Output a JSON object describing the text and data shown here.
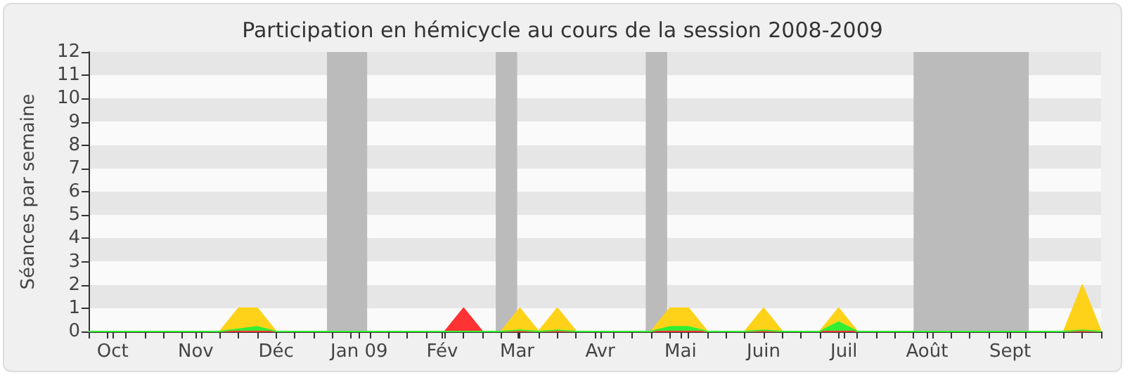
{
  "chart_data": {
    "type": "area",
    "title": "Participation en hémicycle au cours de la session 2008-2009",
    "ylabel": "Séances par semaine",
    "x": [
      "2008-09-22",
      "2008-09-29",
      "2008-10-06",
      "2008-10-13",
      "2008-10-20",
      "2008-10-27",
      "2008-11-03",
      "2008-11-10",
      "2008-11-17",
      "2008-11-24",
      "2008-12-01",
      "2008-12-08",
      "2008-12-15",
      "2008-12-22",
      "2008-12-29",
      "2009-01-05",
      "2009-01-12",
      "2009-01-19",
      "2009-01-26",
      "2009-02-02",
      "2009-02-09",
      "2009-02-16",
      "2009-02-23",
      "2009-03-02",
      "2009-03-09",
      "2009-03-16",
      "2009-03-23",
      "2009-03-30",
      "2009-04-06",
      "2009-04-13",
      "2009-04-20",
      "2009-04-27",
      "2009-05-04",
      "2009-05-11",
      "2009-05-18",
      "2009-05-25",
      "2009-06-01",
      "2009-06-08",
      "2009-06-15",
      "2009-06-22",
      "2009-06-29",
      "2009-07-06",
      "2009-07-13",
      "2009-07-20",
      "2009-07-27",
      "2009-08-03",
      "2009-08-10",
      "2009-08-17",
      "2009-08-24",
      "2009-08-31",
      "2009-09-07",
      "2009-09-14",
      "2009-09-21",
      "2009-09-28",
      "2009-10-05"
    ],
    "series": [
      {
        "color": "#ffd21a",
        "values": [
          0,
          0,
          0,
          0,
          0,
          0,
          0,
          0,
          1,
          1,
          0,
          0,
          0,
          0,
          0,
          0,
          0,
          0,
          0,
          0,
          0,
          0,
          0,
          1,
          0,
          1,
          0,
          0,
          0,
          0,
          0,
          1,
          1,
          0,
          0,
          0,
          1,
          0,
          0,
          0,
          1,
          0,
          0,
          0,
          0,
          0,
          0,
          0,
          0,
          0,
          0,
          0,
          0,
          2,
          0
        ]
      },
      {
        "color": "#ff3333",
        "values": [
          0,
          0,
          0,
          0,
          0,
          0,
          0,
          0,
          0,
          0,
          0,
          0,
          0,
          0,
          0,
          0,
          0,
          0,
          0,
          0,
          1,
          0,
          0,
          0,
          0,
          0,
          0,
          0,
          0,
          0,
          0,
          0,
          0,
          0,
          0,
          0,
          0,
          0,
          0,
          0,
          0,
          0,
          0,
          0,
          0,
          0,
          0,
          0,
          0,
          0,
          0,
          0,
          0,
          0,
          0
        ]
      },
      {
        "color": "#33ee33",
        "values": [
          0,
          0,
          0,
          0,
          0,
          0,
          0,
          0,
          0.1,
          0.2,
          0,
          0,
          0,
          0,
          0,
          0,
          0,
          0,
          0,
          0,
          0,
          0,
          0,
          0.05,
          0,
          0.05,
          0,
          0,
          0,
          0,
          0,
          0.2,
          0.2,
          0,
          0,
          0,
          0.05,
          0,
          0,
          0,
          0.4,
          0,
          0,
          0,
          0,
          0,
          0,
          0,
          0,
          0,
          0,
          0,
          0,
          0.05,
          0
        ]
      }
    ],
    "xlim": [
      "2008-09-22",
      "2009-10-05"
    ],
    "xticks": [
      {
        "value": "2008-10-01",
        "label": "Oct"
      },
      {
        "value": "2008-11-01",
        "label": "Nov"
      },
      {
        "value": "2008-12-01",
        "label": "Déc"
      },
      {
        "value": "2009-01-01",
        "label": "Jan 09"
      },
      {
        "value": "2009-02-01",
        "label": "Fév"
      },
      {
        "value": "2009-03-01",
        "label": "Mar"
      },
      {
        "value": "2009-04-01",
        "label": "Avr"
      },
      {
        "value": "2009-05-01",
        "label": "Mai"
      },
      {
        "value": "2009-06-01",
        "label": "Juin"
      },
      {
        "value": "2009-07-01",
        "label": "Juil"
      },
      {
        "value": "2009-08-01",
        "label": "Août"
      },
      {
        "value": "2009-09-01",
        "label": "Sept"
      }
    ],
    "ylim": [
      0,
      12
    ],
    "yticks": [
      0,
      1,
      2,
      3,
      4,
      5,
      6,
      7,
      8,
      9,
      10,
      11,
      12
    ],
    "bands": [
      {
        "axis": "x",
        "from": "2008-12-20",
        "to": "2009-01-04",
        "color": "#bbbbbb"
      },
      {
        "axis": "x",
        "from": "2009-02-21",
        "to": "2009-03-01",
        "color": "#bbbbbb"
      },
      {
        "axis": "x",
        "from": "2009-04-18",
        "to": "2009-04-26",
        "color": "#bbbbbb"
      },
      {
        "axis": "x",
        "from": "2009-07-27",
        "to": "2009-09-08",
        "color": "#bbbbbb"
      }
    ],
    "marker": "none"
  }
}
